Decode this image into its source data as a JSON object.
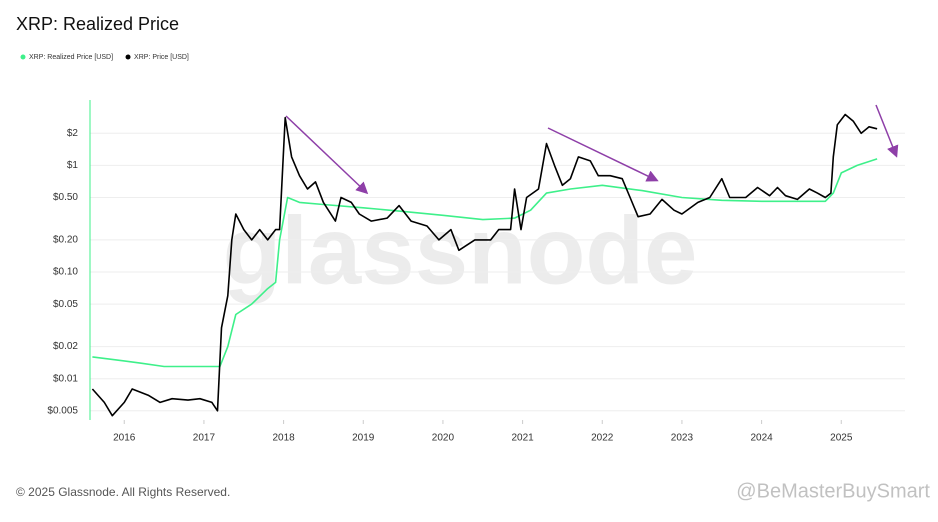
{
  "chart_data": {
    "type": "line",
    "title": "XRP: Realized Price",
    "watermark": "glassnode",
    "footer": "© 2025 Glassnode. All Rights Reserved.",
    "credit": "@BeMasterBuySmart",
    "log_y": true,
    "grid": true,
    "xlim": [
      2015.57,
      2025.8
    ],
    "xticks": [
      2016,
      2017,
      2018,
      2019,
      2020,
      2021,
      2022,
      2023,
      2024,
      2025
    ],
    "ylim": [
      0.0041,
      4.1
    ],
    "yticks": [
      {
        "value": 0.005,
        "label": "$0.005"
      },
      {
        "value": 0.01,
        "label": "$0.01"
      },
      {
        "value": 0.02,
        "label": "$0.02"
      },
      {
        "value": 0.05,
        "label": "$0.05"
      },
      {
        "value": 0.1,
        "label": "$0.10"
      },
      {
        "value": 0.2,
        "label": "$0.20"
      },
      {
        "value": 0.5,
        "label": "$0.50"
      },
      {
        "value": 1,
        "label": "$1"
      },
      {
        "value": 2,
        "label": "$2"
      }
    ],
    "series": [
      {
        "name": "XRP: Realized Price [USD]",
        "color": "#3ef08a",
        "x": [
          2015.6,
          2015.9,
          2016.2,
          2016.5,
          2017.2,
          2017.3,
          2017.4,
          2017.6,
          2017.8,
          2017.9,
          2017.95,
          2018.05,
          2018.2,
          2018.5,
          2019.0,
          2019.5,
          2020.0,
          2020.5,
          2020.9,
          2021.1,
          2021.3,
          2021.6,
          2022.0,
          2022.5,
          2023.0,
          2023.5,
          2024.0,
          2024.8,
          2024.9,
          2025.0,
          2025.2,
          2025.45
        ],
        "values": [
          0.016,
          0.015,
          0.014,
          0.013,
          0.013,
          0.02,
          0.04,
          0.05,
          0.07,
          0.08,
          0.2,
          0.5,
          0.45,
          0.43,
          0.4,
          0.37,
          0.34,
          0.31,
          0.32,
          0.38,
          0.55,
          0.6,
          0.65,
          0.58,
          0.5,
          0.47,
          0.46,
          0.46,
          0.55,
          0.85,
          1.0,
          1.15
        ]
      },
      {
        "name": "XRP: Price [USD]",
        "color": "#000000",
        "x": [
          2015.6,
          2015.75,
          2015.85,
          2016.0,
          2016.1,
          2016.3,
          2016.45,
          2016.6,
          2016.8,
          2016.95,
          2017.1,
          2017.17,
          2017.22,
          2017.3,
          2017.35,
          2017.4,
          2017.5,
          2017.6,
          2017.7,
          2017.8,
          2017.9,
          2017.95,
          2017.99,
          2018.02,
          2018.1,
          2018.2,
          2018.3,
          2018.4,
          2018.5,
          2018.65,
          2018.72,
          2018.85,
          2018.95,
          2019.1,
          2019.3,
          2019.45,
          2019.6,
          2019.8,
          2019.95,
          2020.1,
          2020.2,
          2020.4,
          2020.6,
          2020.7,
          2020.85,
          2020.9,
          2020.98,
          2021.05,
          2021.2,
          2021.3,
          2021.4,
          2021.5,
          2021.6,
          2021.7,
          2021.85,
          2021.95,
          2022.1,
          2022.25,
          2022.35,
          2022.45,
          2022.6,
          2022.75,
          2022.9,
          2023.0,
          2023.2,
          2023.35,
          2023.5,
          2023.6,
          2023.8,
          2023.95,
          2024.1,
          2024.2,
          2024.3,
          2024.45,
          2024.6,
          2024.7,
          2024.8,
          2024.87,
          2024.9,
          2024.95,
          2025.05,
          2025.15,
          2025.25,
          2025.35,
          2025.45
        ],
        "values": [
          0.008,
          0.006,
          0.0045,
          0.006,
          0.008,
          0.007,
          0.006,
          0.0065,
          0.0063,
          0.0065,
          0.006,
          0.005,
          0.03,
          0.06,
          0.2,
          0.35,
          0.25,
          0.2,
          0.25,
          0.2,
          0.25,
          0.25,
          1.0,
          2.8,
          1.2,
          0.8,
          0.6,
          0.7,
          0.45,
          0.3,
          0.5,
          0.45,
          0.35,
          0.3,
          0.32,
          0.42,
          0.3,
          0.27,
          0.2,
          0.25,
          0.16,
          0.2,
          0.2,
          0.25,
          0.25,
          0.6,
          0.25,
          0.5,
          0.6,
          1.6,
          1.0,
          0.65,
          0.75,
          1.2,
          1.1,
          0.8,
          0.8,
          0.75,
          0.5,
          0.33,
          0.35,
          0.48,
          0.38,
          0.35,
          0.45,
          0.5,
          0.75,
          0.5,
          0.5,
          0.62,
          0.52,
          0.62,
          0.52,
          0.48,
          0.6,
          0.55,
          0.5,
          0.55,
          1.2,
          2.4,
          3.0,
          2.6,
          2.0,
          2.3,
          2.2
        ]
      }
    ]
  }
}
